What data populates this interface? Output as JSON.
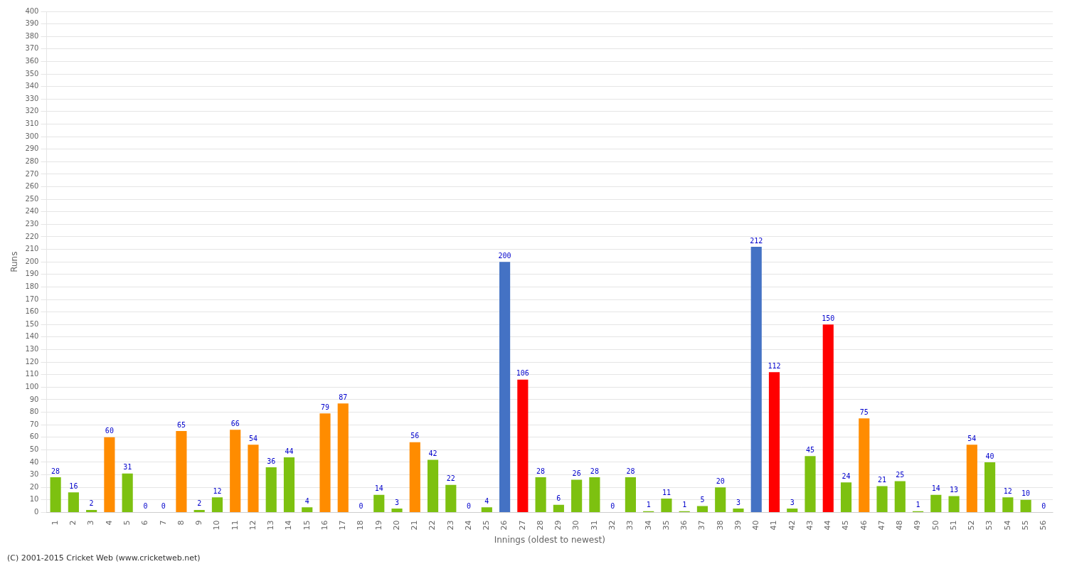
{
  "chart_data": {
    "type": "bar",
    "xlabel": "Innings (oldest to newest)",
    "ylabel": "Runs",
    "annotations": [
      "(C) 2001-2015 Cricket Web (www.cricketweb.net)"
    ],
    "categories": [
      "1",
      "2",
      "3",
      "4",
      "5",
      "6",
      "7",
      "8",
      "9",
      "10",
      "11",
      "12",
      "13",
      "14",
      "15",
      "16",
      "17",
      "18",
      "19",
      "20",
      "21",
      "22",
      "23",
      "24",
      "25",
      "26",
      "27",
      "28",
      "29",
      "30",
      "31",
      "32",
      "33",
      "34",
      "35",
      "36",
      "37",
      "38",
      "39",
      "40",
      "41",
      "42",
      "43",
      "44",
      "45",
      "46",
      "47",
      "48",
      "49",
      "50",
      "51",
      "52",
      "53",
      "54",
      "55",
      "56"
    ],
    "values": [
      28,
      16,
      2,
      60,
      31,
      0,
      0,
      65,
      2,
      12,
      66,
      54,
      36,
      44,
      4,
      79,
      87,
      0,
      14,
      3,
      56,
      42,
      22,
      0,
      4,
      200,
      106,
      28,
      6,
      26,
      28,
      0,
      28,
      1,
      11,
      1,
      5,
      20,
      3,
      212,
      112,
      3,
      45,
      150,
      24,
      75,
      21,
      25,
      1,
      14,
      13,
      54,
      40,
      12,
      10,
      0
    ],
    "colors": [
      "#7dc110",
      "#7dc110",
      "#7dc110",
      "#ff8c00",
      "#7dc110",
      "#7dc110",
      "#7dc110",
      "#ff8c00",
      "#7dc110",
      "#7dc110",
      "#ff8c00",
      "#ff8c00",
      "#7dc110",
      "#7dc110",
      "#7dc110",
      "#ff8c00",
      "#ff8c00",
      "#7dc110",
      "#7dc110",
      "#7dc110",
      "#ff8c00",
      "#7dc110",
      "#7dc110",
      "#7dc110",
      "#7dc110",
      "#4472c4",
      "#ff0000",
      "#7dc110",
      "#7dc110",
      "#7dc110",
      "#7dc110",
      "#7dc110",
      "#7dc110",
      "#7dc110",
      "#7dc110",
      "#7dc110",
      "#7dc110",
      "#7dc110",
      "#7dc110",
      "#4472c4",
      "#ff0000",
      "#7dc110",
      "#7dc110",
      "#ff0000",
      "#7dc110",
      "#ff8c00",
      "#7dc110",
      "#7dc110",
      "#7dc110",
      "#7dc110",
      "#7dc110",
      "#ff8c00",
      "#7dc110",
      "#7dc110",
      "#7dc110",
      "#7dc110"
    ],
    "ylim": [
      0,
      400
    ],
    "yticks": [
      0,
      10,
      20,
      30,
      40,
      50,
      60,
      70,
      80,
      90,
      100,
      110,
      120,
      130,
      140,
      150,
      160,
      170,
      180,
      190,
      200,
      210,
      220,
      230,
      240,
      250,
      260,
      270,
      280,
      290,
      300,
      310,
      320,
      330,
      340,
      350,
      360,
      370,
      380,
      390,
      400
    ],
    "grid": true,
    "data_labels": true
  }
}
